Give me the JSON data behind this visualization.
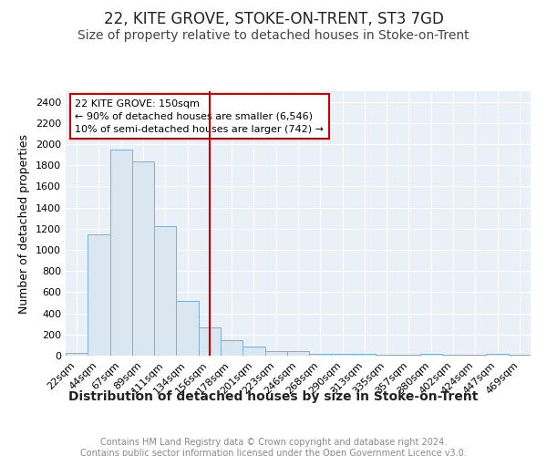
{
  "title": "22, KITE GROVE, STOKE-ON-TRENT, ST3 7GD",
  "subtitle": "Size of property relative to detached houses in Stoke-on-Trent",
  "xlabel": "Distribution of detached houses by size in Stoke-on-Trent",
  "ylabel": "Number of detached properties",
  "categories": [
    "22sqm",
    "44sqm",
    "67sqm",
    "89sqm",
    "111sqm",
    "134sqm",
    "156sqm",
    "178sqm",
    "201sqm",
    "223sqm",
    "246sqm",
    "268sqm",
    "290sqm",
    "313sqm",
    "335sqm",
    "357sqm",
    "380sqm",
    "402sqm",
    "424sqm",
    "447sqm",
    "469sqm"
  ],
  "values": [
    30,
    1150,
    1950,
    1840,
    1220,
    515,
    265,
    150,
    82,
    45,
    42,
    18,
    18,
    15,
    12,
    5,
    15,
    5,
    5,
    18,
    5
  ],
  "bar_color": "#dae6f0",
  "bar_edge_color": "#7aafd4",
  "vline_x_idx": 6,
  "vline_color": "#cc0000",
  "annotation_line1": "22 KITE GROVE: 150sqm",
  "annotation_line2": "← 90% of detached houses are smaller (6,546)",
  "annotation_line3": "10% of semi-detached houses are larger (742) →",
  "annotation_box_color": "#ffffff",
  "annotation_box_edge": "#cc0000",
  "ylim": [
    0,
    2500
  ],
  "yticks": [
    0,
    200,
    400,
    600,
    800,
    1000,
    1200,
    1400,
    1600,
    1800,
    2000,
    2200,
    2400
  ],
  "bg_color": "#eaf0f8",
  "grid_color": "#ffffff",
  "footer_text": "Contains HM Land Registry data © Crown copyright and database right 2024.\nContains public sector information licensed under the Open Government Licence v3.0.",
  "title_fontsize": 12,
  "subtitle_fontsize": 10,
  "xlabel_fontsize": 10,
  "ylabel_fontsize": 9,
  "tick_fontsize": 8,
  "footer_fontsize": 7
}
